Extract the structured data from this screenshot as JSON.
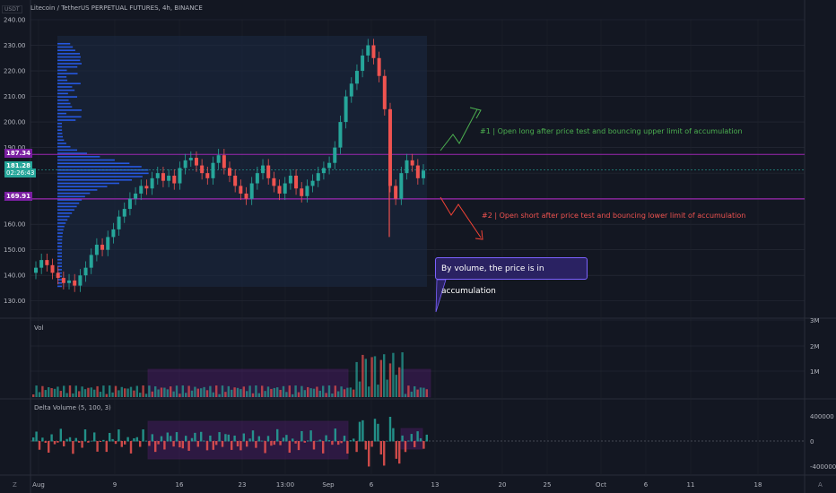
{
  "header": {
    "currency": "USDT",
    "title": "Litecoin / TetherUS PERPETUAL FUTURES, 4h, BINANCE"
  },
  "price_labels": {
    "upper": "187.34",
    "current": "181.28",
    "countdown": "02:26:43",
    "lower": "169.91"
  },
  "annotations": {
    "long": "#1 | Open long after price test and bouncing upper limit of accumulation",
    "short": "#2 | Open short after price test and bouncing lower limit of accumulation",
    "callout": "By volume, the price is in accumulation"
  },
  "panes": {
    "vol_label": "Vol",
    "delta_label": "Delta Volume (5, 100, 3)"
  },
  "corners": {
    "left": "Z",
    "right": "A"
  },
  "colors": {
    "background": "#131722",
    "up": "#26a69a",
    "down": "#ef5350",
    "accumulation_line": "#9c27b0",
    "long_arrow": "#4caf50",
    "short_arrow": "#f44336",
    "profile": "#2962ff"
  },
  "chart_data": [
    {
      "type": "candlestick",
      "y_ticks": [
        "240.00",
        "230.00",
        "220.00",
        "210.00",
        "200.00",
        "190.00",
        "180.00",
        "170.00",
        "160.00",
        "150.00",
        "140.00",
        "130.00"
      ],
      "ylim": [
        125,
        240
      ],
      "x_ticks": [
        "Aug",
        "9",
        "16",
        "23",
        "13:00",
        "Sep",
        "6",
        "13",
        "20",
        "25",
        "Oct",
        "6",
        "11",
        "18"
      ],
      "accumulation_range": [
        169.91,
        187.34
      ],
      "closes": [
        143,
        146,
        144,
        141,
        139,
        137,
        138,
        136,
        140,
        143,
        148,
        152,
        150,
        155,
        158,
        163,
        166,
        170,
        172,
        175,
        174,
        178,
        180,
        177,
        179,
        176,
        182,
        185,
        186,
        183,
        180,
        178,
        184,
        187,
        182,
        179,
        175,
        172,
        170,
        176,
        180,
        183,
        178,
        175,
        172,
        176,
        179,
        174,
        171,
        175,
        177,
        180,
        182,
        184,
        190,
        200,
        210,
        215,
        220,
        226,
        230,
        225,
        218,
        205,
        175,
        170,
        180,
        185,
        183,
        178,
        181
      ],
      "vol_ticks": [
        "3M",
        "2M",
        "1M"
      ],
      "delta_ticks": [
        "400000",
        "0",
        "-400000"
      ]
    }
  ]
}
